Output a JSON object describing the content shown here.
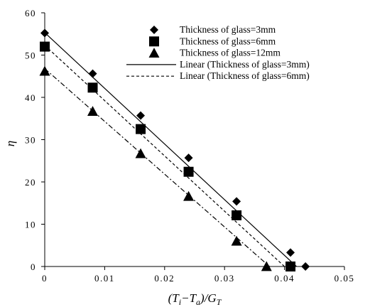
{
  "chart_data": {
    "type": "scatter",
    "xlabel": "(T_i−T_a)/G_T",
    "ylabel": "η",
    "xlim": [
      0,
      0.05
    ],
    "ylim": [
      0,
      60
    ],
    "x_ticks": [
      0,
      0.01,
      0.02,
      0.03,
      0.04,
      0.05
    ],
    "x_tick_labels": [
      "0",
      "0.01",
      "0.02",
      "0.03",
      "0.04",
      "0.05"
    ],
    "y_ticks": [
      0,
      10,
      20,
      30,
      40,
      50,
      60
    ],
    "y_tick_labels": [
      "0",
      "10",
      "20",
      "30",
      "40",
      "50",
      "60"
    ],
    "grid": false,
    "legend_position": "top-right",
    "series": [
      {
        "name": "Thickness of glass=3mm",
        "marker": "diamond",
        "x": [
          0,
          0.008,
          0.016,
          0.024,
          0.032,
          0.041,
          0.0435
        ],
        "y": [
          55.2,
          45.6,
          35.7,
          25.7,
          15.4,
          3.3,
          0
        ]
      },
      {
        "name": "Thickness of glass=6mm",
        "marker": "square",
        "x": [
          0,
          0.008,
          0.016,
          0.024,
          0.032,
          0.041
        ],
        "y": [
          52,
          42.3,
          32.5,
          22.4,
          12.1,
          0
        ]
      },
      {
        "name": "Thickness of glass=12mm",
        "marker": "triangle",
        "x": [
          0,
          0.008,
          0.016,
          0.024,
          0.032,
          0.037
        ],
        "y": [
          46.2,
          36.7,
          26.7,
          16.6,
          6,
          0
        ]
      }
    ],
    "trendlines": [
      {
        "name": "Linear (Thickness of glass=3mm)",
        "style": "solid",
        "x": [
          0,
          0.042
        ],
        "y": [
          55.3,
          0
        ],
        "in_legend": true
      },
      {
        "name": "Linear (Thickness of glass=6mm)",
        "style": "dashed",
        "x": [
          0,
          0.04
        ],
        "y": [
          52.3,
          0
        ],
        "in_legend": true
      },
      {
        "name": "",
        "style": "dashdot",
        "x": [
          0,
          0.0375
        ],
        "y": [
          46.8,
          0
        ],
        "in_legend": false
      }
    ]
  }
}
